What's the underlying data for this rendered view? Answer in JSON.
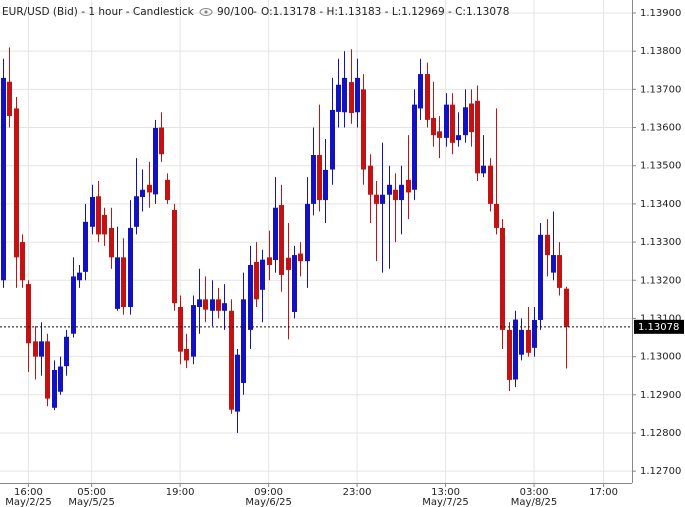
{
  "chart_data": {
    "type": "candlestick",
    "title": "EUR/USD (Bid) - 1 hour - Candlestick",
    "bar_count": "90/100",
    "ohlc_text": "O:1.13178 - H:1.13183 - L:1.12969 - C:1.13078",
    "up_color": "#1212c4",
    "down_color": "#c41212",
    "grid": true,
    "last_price": 1.13078,
    "categories": [
      null,
      null,
      null,
      null,
      "16:00",
      null,
      null,
      null,
      null,
      null,
      null,
      null,
      null,
      null,
      "05:00",
      null,
      null,
      null,
      null,
      null,
      null,
      null,
      null,
      null,
      null,
      null,
      null,
      null,
      "19:00",
      null,
      null,
      null,
      null,
      null,
      null,
      null,
      null,
      null,
      null,
      null,
      null,
      null,
      "09:00",
      null,
      null,
      null,
      null,
      null,
      null,
      null,
      null,
      null,
      null,
      null,
      null,
      null,
      "23:00",
      null,
      null,
      null,
      null,
      null,
      null,
      null,
      null,
      null,
      null,
      null,
      null,
      null,
      "13:00",
      null,
      null,
      null,
      null,
      null,
      null,
      null,
      null,
      null,
      null,
      null,
      null,
      null,
      "03:00",
      null,
      null,
      null,
      null,
      null,
      null,
      null,
      null,
      null,
      null,
      "17:00",
      null,
      null,
      null,
      null
    ],
    "dates": [
      null,
      null,
      null,
      null,
      "May/2/25",
      null,
      null,
      null,
      null,
      null,
      null,
      null,
      null,
      null,
      "May/5/25",
      null,
      null,
      null,
      null,
      null,
      null,
      null,
      null,
      null,
      null,
      null,
      null,
      null,
      null,
      null,
      null,
      null,
      null,
      null,
      null,
      null,
      null,
      null,
      null,
      null,
      null,
      null,
      "May/6/25",
      null,
      null,
      null,
      null,
      null,
      null,
      null,
      null,
      null,
      null,
      null,
      null,
      null,
      null,
      null,
      null,
      null,
      null,
      null,
      null,
      null,
      null,
      null,
      null,
      null,
      null,
      null,
      "May/7/25",
      null,
      null,
      null,
      null,
      null,
      null,
      null,
      null,
      null,
      null,
      null,
      null,
      null,
      "May/8/25",
      null,
      null,
      null,
      null,
      null,
      null,
      null,
      null,
      null,
      null,
      null,
      null,
      null,
      null,
      null
    ],
    "open": [
      1.132,
      1.1372,
      1.1365,
      1.133,
      1.1319,
      1.1304,
      1.13,
      1.1304,
      1.12866,
      1.12908,
      1.12975,
      1.1306,
      1.132,
      1.13222,
      1.1334,
      1.1342,
      1.13371,
      1.13337,
      1.13125,
      1.1326,
      1.1313,
      1.1334,
      1.13418,
      1.1345,
      1.13425,
      1.136,
      1.13463,
      1.13384,
      1.1313,
      1.1302,
      1.13,
      1.1313,
      1.1315,
      1.1312,
      1.1315,
      1.1312,
      1.1312,
      1.12856,
      1.12931,
      1.1307,
      1.13248,
      1.13175,
      1.1326,
      1.13253,
      1.13397,
      1.13259,
      1.13117,
      1.1327,
      1.1325,
      1.134,
      1.13528,
      1.1341,
      1.1349,
      1.13641,
      1.1364,
      1.13719,
      1.1364,
      1.137,
      1.135,
      1.13424,
      1.134,
      1.13424,
      1.13437,
      1.1341,
      1.13463,
      1.13437,
      1.1365,
      1.1374,
      1.13625,
      1.1359,
      1.13573,
      1.1366,
      1.13567,
      1.1358,
      1.13663,
      1.1367,
      1.1348,
      1.135,
      1.134,
      1.13337,
      1.1307,
      1.1294,
      1.13005,
      1.1307,
      1.13023,
      1.13096,
      1.13319,
      1.1322,
      1.13266,
      1.13178,
      null,
      null,
      null,
      null,
      null,
      null,
      null,
      null,
      null,
      null
    ],
    "high": [
      1.1378,
      1.1381,
      1.1368,
      1.1332,
      1.132,
      1.1308,
      1.1309,
      1.1306,
      1.1299,
      1.13,
      1.1307,
      1.1326,
      1.1324,
      1.134,
      1.1345,
      1.1346,
      1.1339,
      1.1339,
      1.1334,
      1.1331,
      1.1341,
      1.1352,
      1.1349,
      1.1351,
      1.1362,
      1.1364,
      1.1348,
      1.134,
      1.1316,
      1.1306,
      1.1316,
      1.1323,
      1.1321,
      1.132,
      1.1318,
      1.1319,
      1.1315,
      1.1302,
      1.1322,
      1.1329,
      1.133,
      1.1328,
      1.1333,
      1.1347,
      1.1345,
      1.1335,
      1.1329,
      1.133,
      1.1347,
      1.136,
      1.1366,
      1.1357,
      1.1373,
      1.1378,
      1.138,
      1.13805,
      1.1378,
      1.1374,
      1.1353,
      1.1346,
      1.1356,
      1.135,
      1.1348,
      1.135,
      1.1358,
      1.137,
      1.1378,
      1.1377,
      1.1372,
      1.1363,
      1.1369,
      1.1369,
      1.1364,
      1.137,
      1.137,
      1.1371,
      1.1358,
      1.1352,
      1.1365,
      1.1336,
      1.1309,
      1.1312,
      1.131,
      1.1313,
      1.1313,
      1.1335,
      1.1336,
      1.1338,
      1.133,
      1.13183,
      null,
      null,
      null,
      null,
      null,
      null,
      null,
      null,
      null,
      null
    ],
    "low": [
      1.1318,
      1.136,
      1.1318,
      1.1318,
      1.1296,
      1.1294,
      1.1295,
      1.1287,
      1.1286,
      1.129,
      1.1295,
      1.1305,
      1.1318,
      1.132,
      1.1332,
      1.133,
      1.1329,
      1.1323,
      1.1312,
      1.1311,
      1.1311,
      1.1332,
      1.1338,
      1.1339,
      1.134,
      1.1351,
      1.134,
      1.1312,
      1.1298,
      1.1297,
      1.1298,
      1.1306,
      1.1309,
      1.1308,
      1.131,
      1.1307,
      1.1285,
      1.128,
      1.129,
      1.1302,
      1.1313,
      1.1309,
      1.132,
      1.1322,
      1.1317,
      1.13045,
      1.131,
      1.1321,
      1.1318,
      1.1337,
      1.1338,
      1.1335,
      1.1345,
      1.136,
      1.136,
      1.1361,
      1.136,
      1.1345,
      1.1335,
      1.1325,
      1.1322,
      1.1323,
      1.133,
      1.1332,
      1.1336,
      1.1341,
      1.1362,
      1.136,
      1.1355,
      1.1352,
      1.1355,
      1.1353,
      1.1355,
      1.1356,
      1.1355,
      1.1346,
      1.1347,
      1.1338,
      1.1332,
      1.1302,
      1.1291,
      1.1292,
      1.1299,
      1.13,
      1.13,
      1.1307,
      1.1321,
      1.132,
      1.1316,
      1.12969,
      null,
      null,
      null,
      null,
      null,
      null,
      null,
      null,
      null,
      null
    ],
    "close": [
      1.1373,
      1.1363,
      1.1326,
      1.132,
      1.13035,
      1.13,
      1.1304,
      1.1289,
      1.12965,
      1.12974,
      1.13052,
      1.1321,
      1.1322,
      1.13353,
      1.13418,
      1.1332,
      1.1332,
      1.1326,
      1.1326,
      1.1313,
      1.13337,
      1.1342,
      1.13437,
      1.1343,
      1.13599,
      1.1353,
      1.1341,
      1.1314,
      1.13013,
      1.1299,
      1.13135,
      1.1315,
      1.13123,
      1.1315,
      1.1312,
      1.1314,
      1.12861,
      1.13005,
      1.1315,
      1.1324,
      1.1315,
      1.13254,
      1.1324,
      1.1339,
      1.13214,
      1.13227,
      1.13266,
      1.1325,
      1.134,
      1.13528,
      1.1341,
      1.13489,
      1.13646,
      1.13712,
      1.1373,
      1.13638,
      1.1373,
      1.1349,
      1.13424,
      1.134,
      1.13424,
      1.1345,
      1.1341,
      1.1345,
      1.1343,
      1.1366,
      1.1374,
      1.1362,
      1.1358,
      1.13573,
      1.1366,
      1.1356,
      1.1358,
      1.13653,
      1.13588,
      1.1348,
      1.135,
      1.134,
      1.13337,
      1.1307,
      1.12939,
      1.13097,
      1.1307,
      1.1301,
      1.13096,
      1.13319,
      1.13266,
      1.13266,
      1.1318,
      1.13078,
      null,
      null,
      null,
      null,
      null,
      null,
      null,
      null,
      null,
      null
    ],
    "ylim": [
      1.12669,
      1.13934
    ],
    "yticks": [
      {
        "value": 1.127,
        "label": "1.12700"
      },
      {
        "value": 1.128,
        "label": "1.12800"
      },
      {
        "value": 1.129,
        "label": "1.12900"
      },
      {
        "value": 1.13,
        "label": "1.13000"
      },
      {
        "value": 1.131,
        "label": "1.13100"
      },
      {
        "value": 1.132,
        "label": "1.13200"
      },
      {
        "value": 1.133,
        "label": "1.13300"
      },
      {
        "value": 1.134,
        "label": "1.13400"
      },
      {
        "value": 1.135,
        "label": "1.13500"
      },
      {
        "value": 1.136,
        "label": "1.13600"
      },
      {
        "value": 1.137,
        "label": "1.13700"
      },
      {
        "value": 1.138,
        "label": "1.13800"
      },
      {
        "value": 1.139,
        "label": "1.13900"
      }
    ]
  }
}
